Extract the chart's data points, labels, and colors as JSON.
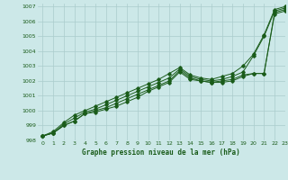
{
  "title": "Graphe pression niveau de la mer (hPa)",
  "background_color": "#cce8e8",
  "grid_color": "#aacccc",
  "line_color": "#1a5c1a",
  "xlim": [
    -0.5,
    23
  ],
  "ylim": [
    998,
    1007.2
  ],
  "yticks": [
    998,
    999,
    1000,
    1001,
    1002,
    1003,
    1004,
    1005,
    1006,
    1007
  ],
  "xticks": [
    0,
    1,
    2,
    3,
    4,
    5,
    6,
    7,
    8,
    9,
    10,
    11,
    12,
    13,
    14,
    15,
    16,
    17,
    18,
    19,
    20,
    21,
    22,
    23
  ],
  "series": [
    [
      998.3,
      998.5,
      999.0,
      999.3,
      999.8,
      999.9,
      1000.1,
      1000.3,
      1000.6,
      1000.9,
      1001.3,
      1001.6,
      1001.9,
      1002.6,
      1002.1,
      1002.0,
      1001.9,
      1001.9,
      1002.0,
      1002.3,
      1002.5,
      1002.5,
      1006.5,
      1006.7
    ],
    [
      998.3,
      998.5,
      999.0,
      999.3,
      999.8,
      1000.0,
      1000.2,
      1000.5,
      1000.8,
      1001.1,
      1001.4,
      1001.7,
      1002.0,
      1002.7,
      1002.2,
      1002.0,
      1001.9,
      1002.0,
      1002.1,
      1002.4,
      1002.5,
      1002.5,
      1006.6,
      1006.8
    ],
    [
      998.3,
      998.5,
      999.1,
      999.5,
      999.9,
      1000.1,
      1000.4,
      1000.7,
      1001.0,
      1001.3,
      1001.6,
      1001.9,
      1002.2,
      1002.8,
      1002.3,
      1002.1,
      1002.0,
      1002.1,
      1002.3,
      1002.6,
      1003.7,
      1005.0,
      1006.7,
      1006.9
    ],
    [
      998.3,
      998.6,
      999.2,
      999.7,
      1000.0,
      1000.3,
      1000.6,
      1000.9,
      1001.2,
      1001.5,
      1001.8,
      1002.1,
      1002.5,
      1002.9,
      1002.4,
      1002.2,
      1002.1,
      1002.3,
      1002.5,
      1003.0,
      1003.8,
      1005.1,
      1006.8,
      1007.0
    ]
  ]
}
